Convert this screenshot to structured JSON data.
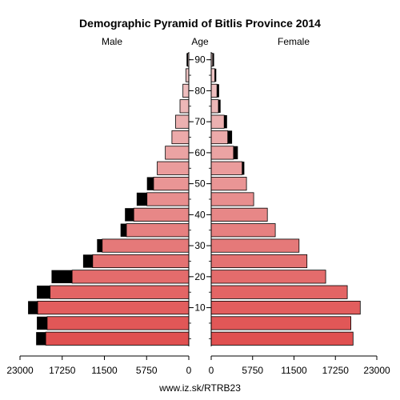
{
  "chart_data": {
    "type": "bar",
    "title": "Demographic Pyramid of Bitlis Province 2014",
    "left_label": "Male",
    "center_label": "Age",
    "right_label": "Female",
    "footer": "www.iz.sk/RTRB23",
    "age_ticks": [
      "10",
      "20",
      "30",
      "40",
      "50",
      "60",
      "70",
      "80",
      "90"
    ],
    "x_ticks_left": [
      "23000",
      "17250",
      "11500",
      "5750",
      "0"
    ],
    "x_ticks_right": [
      "0",
      "5750",
      "11500",
      "17250",
      "23000"
    ],
    "xlim": [
      0,
      23000
    ],
    "age_groups": [
      "0-4",
      "5-9",
      "10-14",
      "15-19",
      "20-24",
      "25-29",
      "30-34",
      "35-39",
      "40-44",
      "45-49",
      "50-54",
      "55-59",
      "60-64",
      "65-69",
      "70-74",
      "75-79",
      "80-84",
      "85-89",
      "90+"
    ],
    "male_base": [
      19500,
      19300,
      20600,
      18900,
      15900,
      13100,
      11800,
      8500,
      7500,
      5700,
      4800,
      4300,
      3200,
      2300,
      1800,
      1200,
      800,
      400,
      150
    ],
    "male_extra": [
      1300,
      1400,
      1300,
      1800,
      2800,
      1300,
      700,
      800,
      1200,
      1400,
      900,
      0,
      0,
      0,
      0,
      0,
      0,
      0,
      150
    ],
    "female_base": [
      19700,
      19400,
      20700,
      18900,
      15900,
      13300,
      12200,
      8900,
      7800,
      5900,
      4900,
      4300,
      3100,
      2300,
      1800,
      1000,
      800,
      500,
      200
    ],
    "female_extra": [
      0,
      0,
      0,
      0,
      0,
      0,
      0,
      0,
      0,
      0,
      0,
      300,
      600,
      600,
      400,
      300,
      300,
      200,
      200
    ],
    "colors": {
      "extra": "#000000",
      "bar_young": "#e05050",
      "bar_old": "#f0cccc",
      "outline": "#000000"
    }
  }
}
